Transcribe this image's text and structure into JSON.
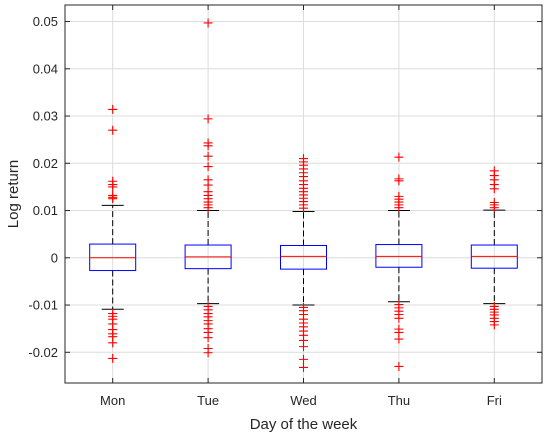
{
  "chart_data": {
    "type": "box",
    "xlabel": "Day of the week",
    "ylabel": "Log return",
    "ylim": [
      -0.0265,
      0.0535
    ],
    "yticks": [
      -0.02,
      -0.01,
      0,
      0.01,
      0.02,
      0.03,
      0.04,
      0.05
    ],
    "ytick_labels": [
      "-0.02",
      "-0.01",
      "0",
      "0.01",
      "0.02",
      "0.03",
      "0.04",
      "0.05"
    ],
    "grid": true,
    "colors": {
      "box": "#0000ff",
      "median": "#ff0000",
      "whisker": "#000000",
      "outlier": "#ff0000"
    },
    "categories": [
      "Mon",
      "Tue",
      "Wed",
      "Thu",
      "Fri"
    ],
    "boxes": [
      {
        "label": "Mon",
        "whisker_low": -0.0109,
        "q1": -0.0027,
        "median": 0.0,
        "q3": 0.0029,
        "whisker_high": 0.0111,
        "outliers": [
          0.0314,
          0.027,
          0.0162,
          0.0155,
          0.015,
          0.0132,
          0.0128,
          0.0125,
          -0.0118,
          -0.0124,
          -0.013,
          -0.014,
          -0.0152,
          -0.0161,
          -0.0167,
          -0.018,
          -0.0213
        ]
      },
      {
        "label": "Tue",
        "whisker_low": -0.0097,
        "q1": -0.0023,
        "median": 0.0002,
        "q3": 0.0027,
        "whisker_high": 0.01,
        "outliers": [
          0.0497,
          0.0294,
          0.0243,
          0.0237,
          0.0215,
          0.0193,
          0.0165,
          0.0154,
          0.014,
          0.0132,
          0.0125,
          0.0118,
          0.0112,
          0.0106,
          -0.0103,
          -0.011,
          -0.0118,
          -0.0125,
          -0.0133,
          -0.014,
          -0.015,
          -0.0158,
          -0.0169,
          -0.0192,
          -0.0201
        ]
      },
      {
        "label": "Wed",
        "whisker_low": -0.01,
        "q1": -0.0024,
        "median": 0.0003,
        "q3": 0.0026,
        "whisker_high": 0.0098,
        "outliers": [
          0.021,
          0.0203,
          0.0196,
          0.0188,
          0.018,
          0.0172,
          0.0163,
          0.0155,
          0.0147,
          0.014,
          0.0133,
          0.0126,
          0.0119,
          0.0112,
          0.0105,
          -0.0105,
          -0.0112,
          -0.012,
          -0.013,
          -0.0138,
          -0.0146,
          -0.0155,
          -0.0164,
          -0.0175,
          -0.0188,
          -0.0215,
          -0.0232
        ]
      },
      {
        "label": "Thu",
        "whisker_low": -0.0093,
        "q1": -0.002,
        "median": 0.0003,
        "q3": 0.0028,
        "whisker_high": 0.01,
        "outliers": [
          0.0213,
          0.0167,
          0.0163,
          0.013,
          0.0124,
          0.0118,
          0.0112,
          0.0106,
          -0.0099,
          -0.0106,
          -0.0113,
          -0.012,
          -0.0128,
          -0.0151,
          -0.0158,
          -0.0172,
          -0.023
        ]
      },
      {
        "label": "Fri",
        "whisker_low": -0.0097,
        "q1": -0.0022,
        "median": 0.0003,
        "q3": 0.0027,
        "whisker_high": 0.0101,
        "outliers": [
          0.0184,
          0.0174,
          0.0165,
          0.0155,
          0.0146,
          0.0117,
          0.0112,
          0.0106,
          -0.0103,
          -0.0109,
          -0.0115,
          -0.0121,
          -0.0128,
          -0.0135,
          -0.0142
        ]
      }
    ]
  }
}
